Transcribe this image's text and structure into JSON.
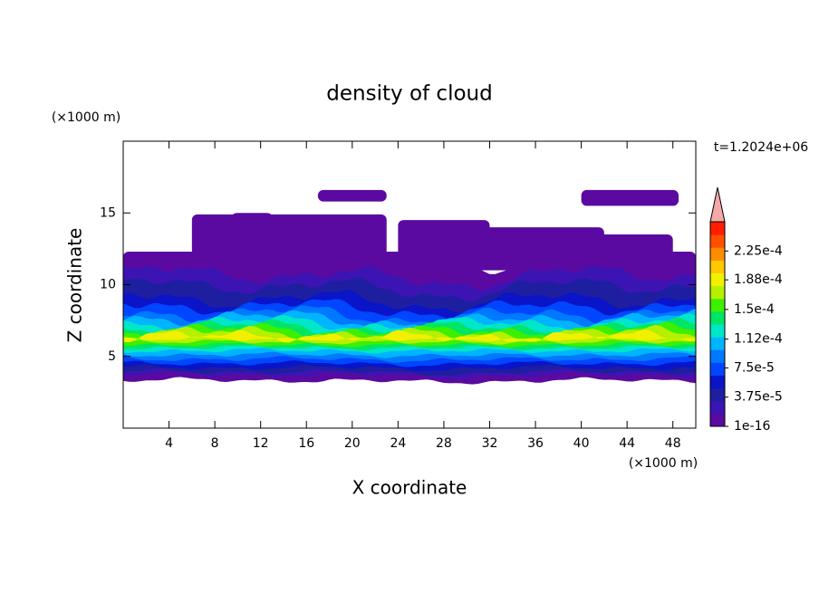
{
  "chart_data": {
    "type": "contour",
    "title": "density of cloud",
    "x_label": "X coordinate",
    "y_label": "Z coordinate",
    "x_unit": "(×1000 m)",
    "y_unit": "(×1000 m)",
    "time_label": "t=1.2024e+06",
    "xlim": [
      0,
      50
    ],
    "xticks": [
      4,
      8,
      12,
      16,
      20,
      24,
      28,
      32,
      36,
      40,
      44,
      48
    ],
    "ylim": [
      0,
      20
    ],
    "yticks": [
      5,
      10,
      15
    ],
    "colorbar": {
      "colors": [
        "#5a0aa0",
        "#3c14b4",
        "#1e1ea0",
        "#0a14c8",
        "#0046ff",
        "#0078ff",
        "#00b4ff",
        "#00e6c8",
        "#00e664",
        "#3cf000",
        "#b4f000",
        "#f0f000",
        "#ffc800",
        "#ff8c00",
        "#ff5000",
        "#ff1e00"
      ],
      "extend_color": "#f4a8a8",
      "lim": [
        1e-16,
        0.0002625
      ],
      "ticks": [
        1e-16,
        {
          "value": 3.75e-05,
          "label": "3.75e-5"
        },
        {
          "value": 7.5e-05,
          "label": "7.5e-5"
        },
        {
          "value": 0.000112,
          "label": "1.12e-4"
        },
        {
          "value": 0.00015,
          "label": "1.5e-4"
        },
        {
          "value": 0.000188,
          "label": "1.88e-4"
        },
        {
          "value": 0.000225,
          "label": "2.25e-4"
        }
      ]
    }
  }
}
